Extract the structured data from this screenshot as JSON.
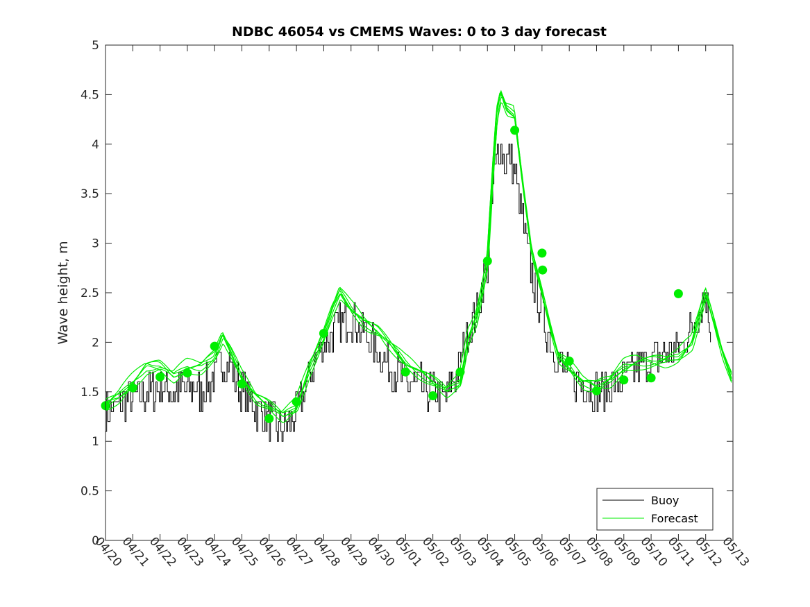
{
  "chart_data": {
    "type": "line",
    "title": "NDBC 46054 vs CMEMS Waves: 0 to 3 day forecast",
    "xlabel": "",
    "ylabel": "Wave height, m",
    "x_unit": "date (month/day)",
    "xlim": [
      0,
      23
    ],
    "ylim": [
      0,
      5
    ],
    "x_ticks": [
      "04/20",
      "04/21",
      "04/22",
      "04/23",
      "04/24",
      "04/25",
      "04/26",
      "04/27",
      "04/28",
      "04/29",
      "04/30",
      "05/01",
      "05/02",
      "05/03",
      "05/04",
      "05/05",
      "05/06",
      "05/07",
      "05/08",
      "05/09",
      "05/10",
      "05/11",
      "05/12",
      "05/13"
    ],
    "y_ticks": [
      "0",
      "0.5",
      "1",
      "1.5",
      "2",
      "2.5",
      "3",
      "3.5",
      "4",
      "4.5",
      "5"
    ],
    "grid": false,
    "legend": {
      "position": "bottom-right",
      "entries": [
        {
          "label": "Buoy",
          "color": "#000000"
        },
        {
          "label": "Forecast",
          "color": "#00ee00"
        }
      ]
    },
    "colors": {
      "buoy": "#000000",
      "forecast": "#00ee00"
    },
    "buoy_envelope": {
      "x": [
        0,
        0.5,
        1,
        1.5,
        2,
        2.5,
        3,
        3.5,
        4,
        4.3,
        4.6,
        5,
        5.5,
        6,
        6.5,
        7,
        7.5,
        8,
        8.5,
        9,
        9.5,
        10,
        10.5,
        11,
        11.5,
        12,
        12.5,
        13,
        13.3,
        13.6,
        14,
        14.2,
        14.4,
        14.6,
        14.8,
        15,
        15.3,
        15.6,
        16,
        16.3,
        16.6,
        17,
        17.5,
        18,
        18.5,
        19,
        19.5,
        20,
        20.5,
        21,
        21.3,
        21.6,
        22,
        22.2
      ],
      "y": [
        1.3,
        1.35,
        1.45,
        1.5,
        1.55,
        1.5,
        1.55,
        1.5,
        1.65,
        1.85,
        1.75,
        1.5,
        1.35,
        1.2,
        1.1,
        1.3,
        1.7,
        2.0,
        2.15,
        2.25,
        2.1,
        1.9,
        1.75,
        1.6,
        1.55,
        1.5,
        1.45,
        1.8,
        2.1,
        2.3,
        2.8,
        3.6,
        4.0,
        3.8,
        3.9,
        3.7,
        3.2,
        2.7,
        2.3,
        2.0,
        1.8,
        1.65,
        1.55,
        1.5,
        1.55,
        1.65,
        1.75,
        1.8,
        1.85,
        1.95,
        2.05,
        2.2,
        2.5,
        2.1
      ]
    },
    "forecast_envelope": {
      "x": [
        0,
        0.5,
        1,
        1.5,
        2,
        2.5,
        3,
        3.5,
        4,
        4.3,
        4.6,
        5,
        5.5,
        6,
        6.5,
        7,
        7.5,
        8,
        8.3,
        8.6,
        9,
        9.5,
        10,
        10.5,
        11,
        11.5,
        12,
        12.5,
        13,
        13.3,
        13.6,
        14,
        14.2,
        14.35,
        14.5,
        14.7,
        15,
        15.3,
        15.6,
        16,
        16.3,
        16.6,
        17,
        17.5,
        18,
        18.5,
        19,
        19.5,
        20,
        20.5,
        21,
        21.5,
        22,
        22.3,
        22.6,
        23
      ],
      "y": [
        1.35,
        1.45,
        1.6,
        1.75,
        1.75,
        1.65,
        1.75,
        1.75,
        1.85,
        2.05,
        1.9,
        1.65,
        1.45,
        1.35,
        1.25,
        1.35,
        1.75,
        2.05,
        2.3,
        2.5,
        2.35,
        2.2,
        2.1,
        1.95,
        1.8,
        1.7,
        1.6,
        1.5,
        1.6,
        2.05,
        2.25,
        2.8,
        3.7,
        4.3,
        4.5,
        4.35,
        4.3,
        3.6,
        2.95,
        2.5,
        2.15,
        1.85,
        1.75,
        1.6,
        1.55,
        1.6,
        1.75,
        1.8,
        1.8,
        1.8,
        1.85,
        2.0,
        2.5,
        2.2,
        1.9,
        1.6
      ]
    },
    "forecast_points": {
      "x": [
        0,
        1,
        2,
        3,
        4,
        5,
        6,
        7,
        8,
        11,
        12,
        13,
        14,
        15,
        16,
        16.02,
        17,
        18,
        19,
        20,
        21
      ],
      "y": [
        1.36,
        1.54,
        1.65,
        1.69,
        1.96,
        1.58,
        1.23,
        1.4,
        2.09,
        1.7,
        1.46,
        1.7,
        2.82,
        4.14,
        2.9,
        2.73,
        1.81,
        1.51,
        1.62,
        1.64,
        2.49
      ]
    }
  }
}
